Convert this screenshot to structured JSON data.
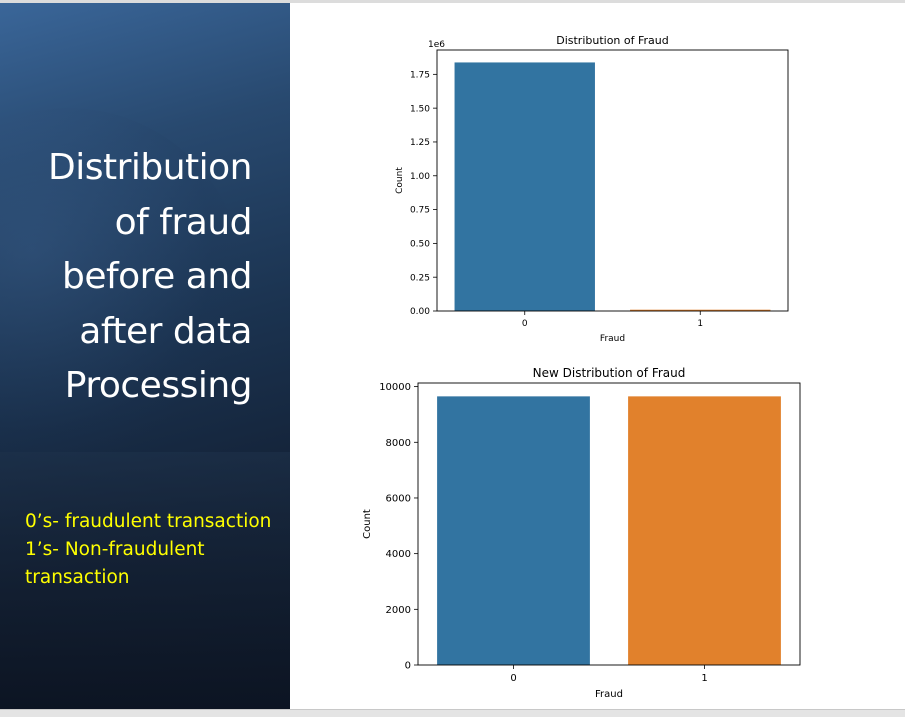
{
  "slide": {
    "title": "Distribution\nof fraud\nbefore and\nafter data\nProcessing",
    "notes": [
      "0’s- fraudulent transaction",
      "1’s- Non-fraudulent",
      "transaction"
    ],
    "colors": {
      "panel": "#1b3350",
      "title_text": "#ffffff",
      "note_text": "#ffff00"
    }
  },
  "chart_data": [
    {
      "type": "bar",
      "title": "Distribution of Fraud",
      "xlabel": "Fraud",
      "ylabel": "Count",
      "offset_label": "1e6",
      "categories": [
        "0",
        "1"
      ],
      "values": [
        1.838,
        0.0096
      ],
      "ylim": [
        0,
        1.93
      ],
      "yticks": [
        0,
        0.25,
        0.5,
        0.75,
        1.0,
        1.25,
        1.5,
        1.75
      ],
      "ytick_labels": [
        "0.00",
        "0.25",
        "0.50",
        "0.75",
        "1.00",
        "1.25",
        "1.50",
        "1.75"
      ],
      "colors": [
        "#3274a1",
        "#e1812c"
      ],
      "grid": false
    },
    {
      "type": "bar",
      "title": "New Distribution of Fraud",
      "xlabel": "Fraud",
      "ylabel": "Count",
      "categories": [
        "0",
        "1"
      ],
      "values": [
        9650,
        9650
      ],
      "ylim": [
        0,
        10130
      ],
      "yticks": [
        0,
        2000,
        4000,
        6000,
        8000,
        10000
      ],
      "ytick_labels": [
        "0",
        "2000",
        "4000",
        "6000",
        "8000",
        "10000"
      ],
      "colors": [
        "#3274a1",
        "#e1812c"
      ],
      "grid": false
    }
  ]
}
